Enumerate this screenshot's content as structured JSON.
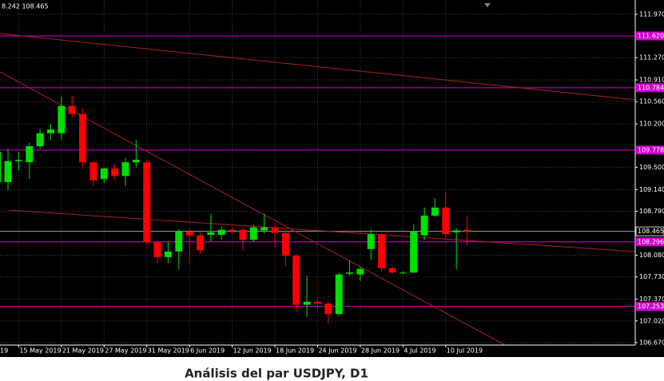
{
  "chart_data": {
    "type": "candlestick",
    "title": "Análisis del par USDJPY, D1",
    "ohlc_text": "8.242 108.465",
    "categories": [
      "19",
      null,
      null,
      null,
      null,
      "15 May 2019",
      null,
      null,
      null,
      "21 May 2019",
      null,
      null,
      null,
      "27 May 2019",
      null,
      null,
      null,
      "31 May 2019",
      null,
      null,
      null,
      "6 Jun 2019",
      null,
      null,
      null,
      "12 Jun 2019",
      null,
      null,
      null,
      "18 Jun 2019",
      null,
      null,
      null,
      "24 Jun 2019",
      null,
      null,
      null,
      "28 Jun 2019",
      null,
      null,
      null,
      "4 Jul 2019",
      null,
      null,
      null,
      "10 Jul 2019",
      null,
      null
    ],
    "open": [
      null,
      null,
      null,
      109.26,
      109.26,
      109.6,
      109.58,
      109.84,
      110.05,
      110.05,
      110.49,
      110.36,
      109.58,
      109.31,
      109.48,
      109.36,
      109.58,
      109.58,
      108.29,
      108.05,
      108.14,
      108.46,
      108.4,
      108.41,
      108.41,
      108.49,
      108.49,
      108.33,
      108.48,
      108.53,
      108.44,
      108.07,
      107.28,
      107.33,
      107.3,
      107.13,
      107.78,
      107.77,
      108.18,
      108.42,
      107.87,
      107.79,
      107.8,
      108.4,
      108.72,
      108.85,
      108.45,
      108.49
    ],
    "high": [
      null,
      null,
      null,
      109.8,
      109.8,
      109.75,
      109.9,
      110.12,
      110.2,
      110.65,
      110.65,
      110.45,
      109.6,
      109.5,
      109.55,
      109.65,
      109.94,
      109.62,
      108.33,
      108.3,
      108.5,
      108.5,
      108.45,
      108.75,
      108.55,
      108.53,
      108.53,
      108.57,
      108.75,
      108.6,
      108.5,
      108.1,
      107.75,
      107.36,
      107.33,
      107.8,
      108.0,
      107.9,
      108.5,
      108.44,
      107.9,
      107.82,
      108.58,
      108.85,
      109.0,
      109.1,
      108.52,
      108.72
    ],
    "low": [
      null,
      null,
      null,
      109.13,
      109.13,
      109.45,
      109.31,
      109.8,
      109.94,
      109.94,
      110.3,
      109.5,
      109.2,
      109.25,
      109.3,
      109.2,
      109.5,
      108.25,
      107.95,
      107.95,
      107.85,
      107.95,
      108.1,
      108.3,
      108.33,
      108.42,
      108.15,
      108.3,
      108.43,
      108.2,
      107.9,
      107.17,
      107.08,
      107.22,
      106.97,
      107.1,
      107.75,
      107.66,
      108.0,
      107.82,
      107.78,
      107.77,
      107.79,
      108.32,
      108.7,
      108.35,
      107.85,
      108.24
    ],
    "close": [
      null,
      null,
      null,
      109.75,
      109.6,
      109.62,
      109.84,
      110.05,
      110.11,
      110.49,
      110.36,
      109.58,
      109.29,
      109.48,
      109.36,
      109.58,
      109.62,
      108.29,
      108.05,
      108.14,
      108.46,
      108.4,
      108.16,
      108.45,
      108.49,
      108.47,
      108.33,
      108.53,
      108.53,
      108.44,
      108.07,
      107.28,
      107.33,
      107.3,
      107.13,
      107.77,
      107.8,
      107.86,
      108.42,
      107.87,
      107.8,
      107.8,
      108.46,
      108.72,
      108.85,
      108.42,
      108.48,
      108.465
    ],
    "up_color": "#00e000",
    "down_color": "#ff0000",
    "ylim": [
      106.63,
      112.2
    ],
    "yticks": [
      {
        "value": 111.97,
        "label": "111.970"
      },
      {
        "value": 111.27,
        "label": "111.270"
      },
      {
        "value": 110.91,
        "label": "110.910"
      },
      {
        "value": 110.56,
        "label": "110.560"
      },
      {
        "value": 110.2,
        "label": "110.200"
      },
      {
        "value": 109.5,
        "label": "109.500"
      },
      {
        "value": 109.14,
        "label": "109.140"
      },
      {
        "value": 108.79,
        "label": "108.790"
      },
      {
        "value": 108.08,
        "label": "108.080"
      },
      {
        "value": 107.73,
        "label": "107.730"
      },
      {
        "value": 107.37,
        "label": "107.370"
      },
      {
        "value": 107.02,
        "label": "107.020"
      },
      {
        "value": 106.67,
        "label": "106.670"
      }
    ],
    "grid": true,
    "levels": [
      {
        "value": 111.62,
        "label": "111.620"
      },
      {
        "value": 110.784,
        "label": "110.784"
      },
      {
        "value": 109.778,
        "label": "109.778"
      },
      {
        "value": 108.296,
        "label": "108.296"
      },
      {
        "value": 107.253,
        "label": "107.253"
      }
    ],
    "level_color": "#d000d0",
    "last_price": 108.465
  }
}
